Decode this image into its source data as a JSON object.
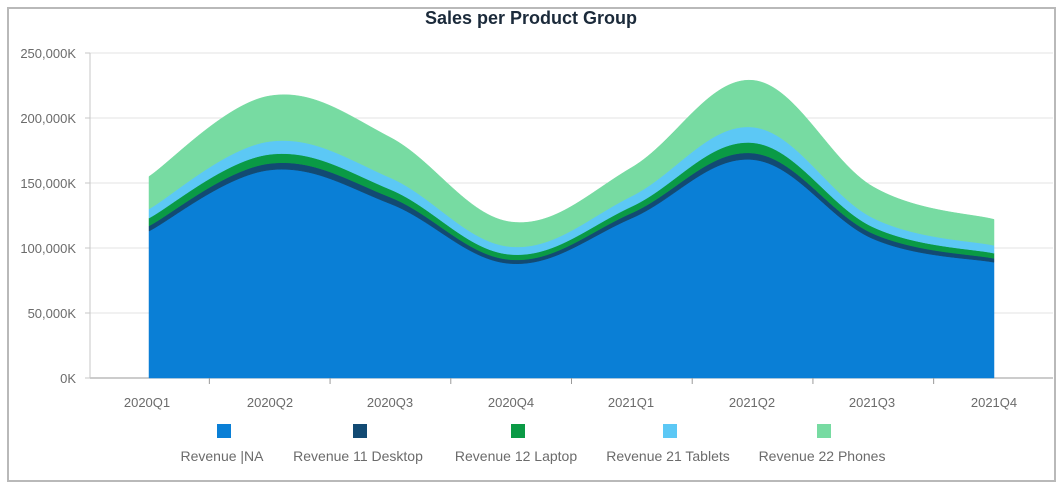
{
  "chart_data": {
    "type": "area",
    "stacked": true,
    "title": "Sales per Product Group",
    "categories": [
      "2020Q1",
      "2020Q2",
      "2020Q3",
      "2020Q4",
      "2021Q1",
      "2021Q2",
      "2021Q3",
      "2021Q4"
    ],
    "ylim": [
      0,
      250000
    ],
    "y_ticks": [
      0,
      50000,
      100000,
      150000,
      200000,
      250000
    ],
    "y_tick_labels": [
      "0K",
      "50,000K",
      "100,000K",
      "150,000K",
      "200,000K",
      "250,000K"
    ],
    "grid": true,
    "legend_position": "bottom",
    "series": [
      {
        "name": "Revenue |NA",
        "color": "#0a7fd6",
        "values": [
          113000,
          160000,
          134000,
          88000,
          123000,
          168000,
          107000,
          89000
        ]
      },
      {
        "name": "Revenue 11 Desktop",
        "color": "#124a73",
        "values": [
          4000,
          5000,
          5000,
          3000,
          4000,
          5000,
          4000,
          3000
        ]
      },
      {
        "name": "Revenue 12 Laptop",
        "color": "#0a9a45",
        "values": [
          6000,
          7000,
          6000,
          4000,
          5000,
          8000,
          5000,
          4000
        ]
      },
      {
        "name": "Revenue 21 Tablets",
        "color": "#5cc8f5",
        "values": [
          7000,
          10000,
          9000,
          6000,
          8000,
          12000,
          7000,
          6000
        ]
      },
      {
        "name": "Revenue 22 Phones",
        "color": "#77dba2",
        "values": [
          25000,
          35000,
          31000,
          19000,
          22000,
          36000,
          24000,
          20000
        ]
      }
    ]
  }
}
